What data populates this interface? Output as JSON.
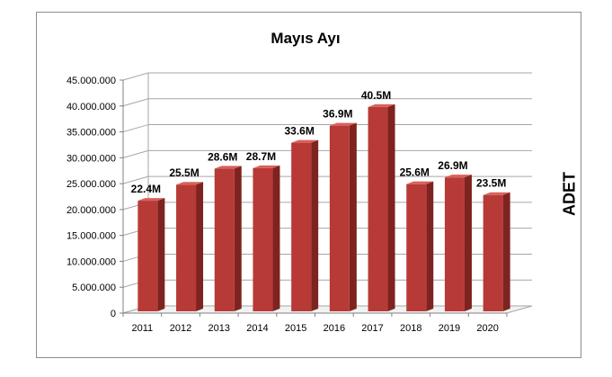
{
  "chart_data": {
    "type": "bar",
    "title": "Mayıs Ayı",
    "xlabel": "",
    "ylabel": "ADET",
    "categories": [
      "2011",
      "2012",
      "2013",
      "2014",
      "2015",
      "2016",
      "2017",
      "2018",
      "2019",
      "2020"
    ],
    "values": [
      22400000,
      25500000,
      28600000,
      28700000,
      33600000,
      36900000,
      40500000,
      25600000,
      26900000,
      23500000
    ],
    "data_labels": [
      "22.4M",
      "25.5M",
      "28.6M",
      "28.7M",
      "33.6M",
      "36.9M",
      "40.5M",
      "25.6M",
      "26.9M",
      "23.5M"
    ],
    "ylim": [
      0,
      45000000
    ],
    "yticks": [
      0,
      5000000,
      10000000,
      15000000,
      20000000,
      25000000,
      30000000,
      35000000,
      40000000,
      45000000
    ],
    "ytick_labels": [
      "0",
      "5.000.000",
      "10.000.000",
      "15.000.000",
      "20.000.000",
      "25.000.000",
      "30.000.000",
      "35.000.000",
      "40.000.000",
      "45.000.000"
    ],
    "grid": true,
    "style": "3d-cylinder",
    "colors": {
      "bar_face": "#b73a36",
      "bar_side": "#7e2320",
      "bar_top": "#d8605a",
      "grid": "#a6a6a6"
    }
  }
}
